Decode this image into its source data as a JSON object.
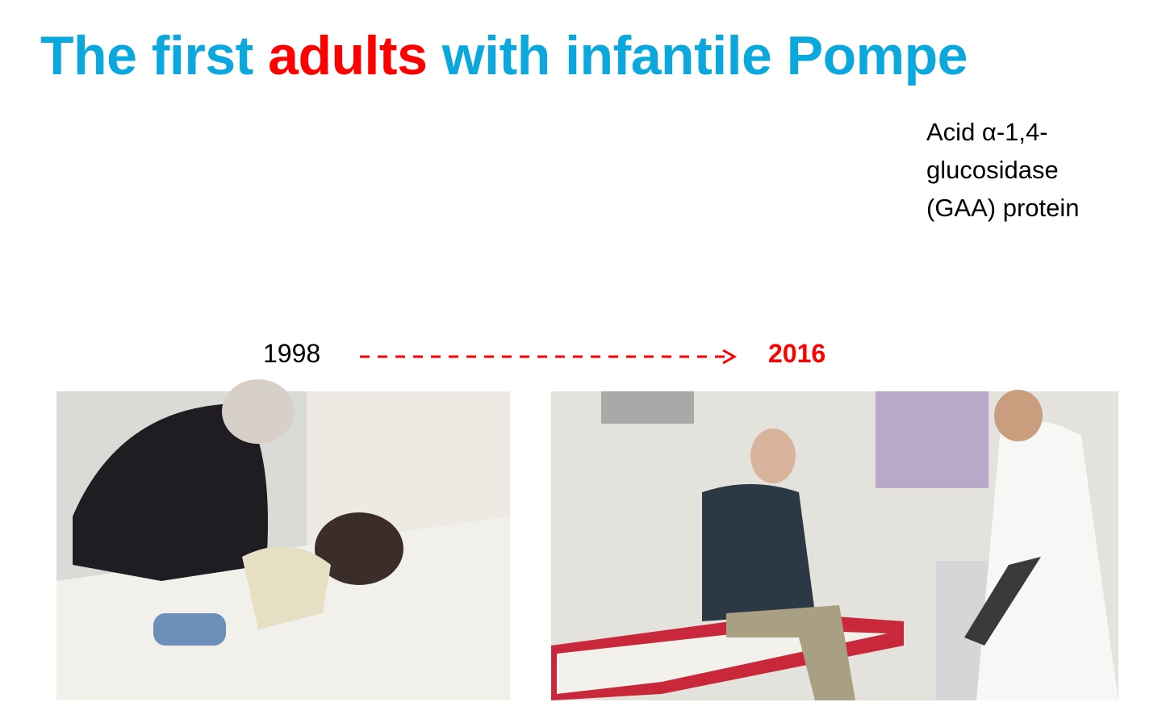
{
  "slide": {
    "title": {
      "before": "The first ",
      "highlight": "adults",
      "after": " with infantile Pompe"
    },
    "side_note": [
      "Acid α-1,4-",
      "glucosidase",
      "(GAA) protein"
    ],
    "timeline": {
      "start": "1998",
      "end": "2016"
    }
  }
}
